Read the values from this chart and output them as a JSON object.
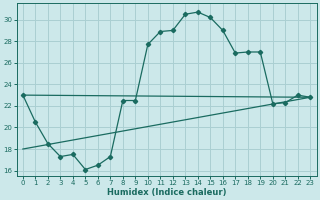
{
  "xlabel": "Humidex (Indice chaleur)",
  "ylabel": "",
  "background_color": "#cce8ea",
  "grid_color": "#aacfd2",
  "line_color": "#1a6b60",
  "xlim": [
    -0.5,
    23.5
  ],
  "ylim": [
    15.5,
    31.5
  ],
  "xticks": [
    0,
    1,
    2,
    3,
    4,
    5,
    6,
    7,
    8,
    9,
    10,
    11,
    12,
    13,
    14,
    15,
    16,
    17,
    18,
    19,
    20,
    21,
    22,
    23
  ],
  "yticks": [
    16,
    18,
    20,
    22,
    24,
    26,
    28,
    30
  ],
  "series1_x": [
    0,
    1,
    2,
    3,
    4,
    5,
    6,
    7,
    8,
    9,
    10,
    11,
    12,
    13,
    14,
    15,
    16,
    17,
    18,
    19,
    20,
    21,
    22,
    23
  ],
  "series1_y": [
    23.0,
    20.5,
    18.5,
    17.3,
    17.5,
    16.1,
    16.5,
    17.3,
    22.5,
    22.5,
    27.7,
    28.9,
    29.0,
    30.5,
    30.7,
    30.2,
    29.0,
    26.9,
    27.0,
    27.0,
    22.2,
    22.3,
    23.0,
    22.8
  ],
  "series2_x": [
    0,
    23
  ],
  "series2_y": [
    18.0,
    22.8
  ],
  "series3_x": [
    0,
    23
  ],
  "series3_y": [
    23.0,
    22.8
  ]
}
